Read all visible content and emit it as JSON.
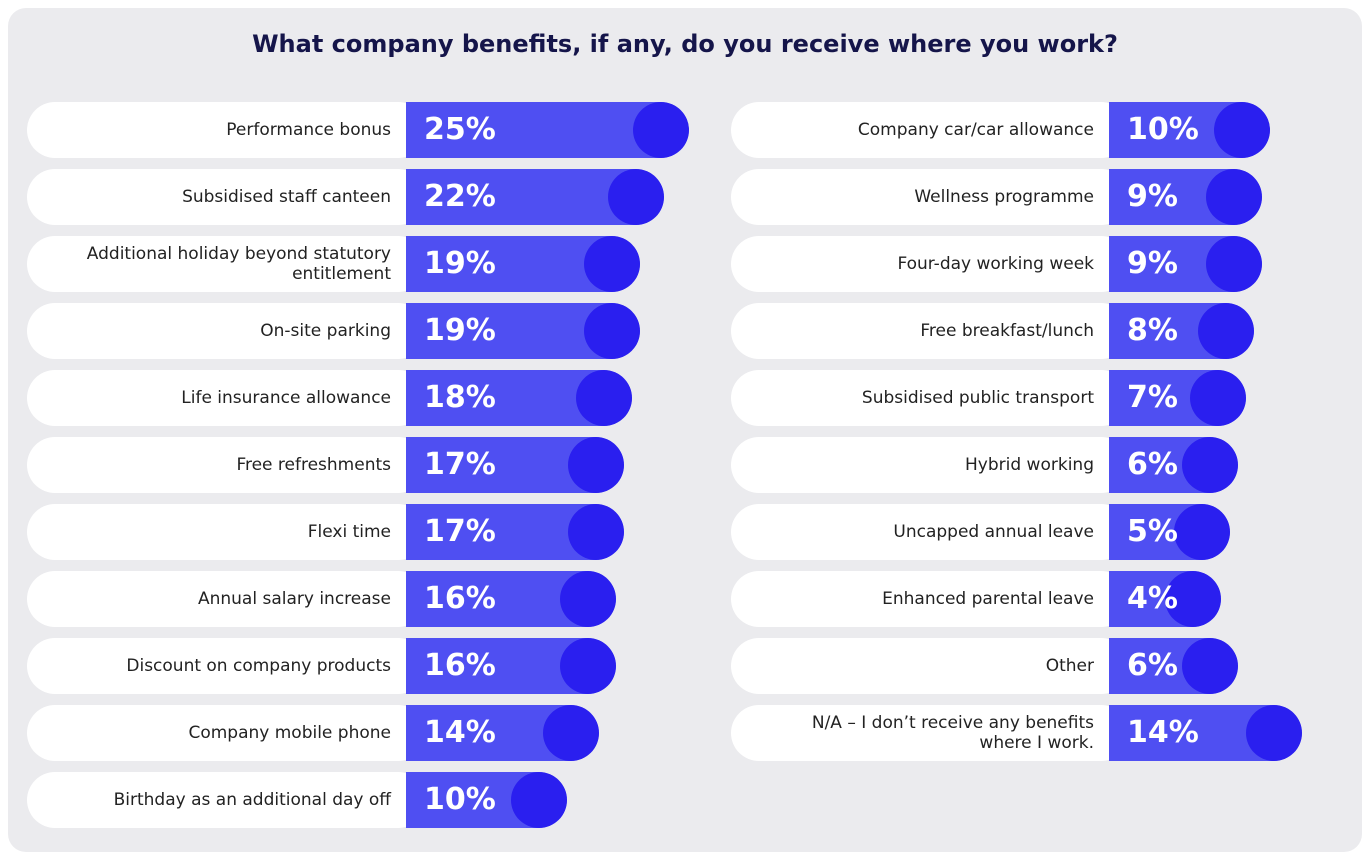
{
  "chart_data": [
    {
      "type": "bar",
      "title": "What company benefits, if any, do you receive where you work?",
      "categories": [
        "Performance bonus",
        "Subsidised staff canteen",
        "Additional holiday beyond statutory entitlement",
        "On-site parking",
        "Life insurance allowance",
        "Free refreshments",
        "Flexi time",
        "Annual salary increase",
        "Discount on company products",
        "Company mobile phone",
        "Birthday as an additional day off"
      ],
      "values": [
        25,
        22,
        19,
        19,
        18,
        17,
        17,
        16,
        16,
        14,
        10
      ],
      "value_labels": [
        "25%",
        "22%",
        "19%",
        "19%",
        "18%",
        "17%",
        "17%",
        "16%",
        "16%",
        "14%",
        "10%"
      ],
      "color": "#4f4ff2"
    },
    {
      "type": "bar",
      "categories": [
        "Company car/car allowance",
        "Wellness programme",
        "Four-day working week",
        "Free breakfast/lunch",
        "Subsidised public transport",
        "Hybrid working",
        "Uncapped annual leave",
        "Enhanced parental leave",
        "Other",
        "N/A – I don’t receive any benefits where I work."
      ],
      "values": [
        10,
        9,
        9,
        8,
        7,
        6,
        5,
        4,
        6,
        14
      ],
      "value_labels": [
        "10%",
        "9%",
        "9%",
        "8%",
        "7%",
        "6%",
        "5%",
        "4%",
        "6%",
        "14%"
      ],
      "color": "#4f4ff2"
    }
  ]
}
